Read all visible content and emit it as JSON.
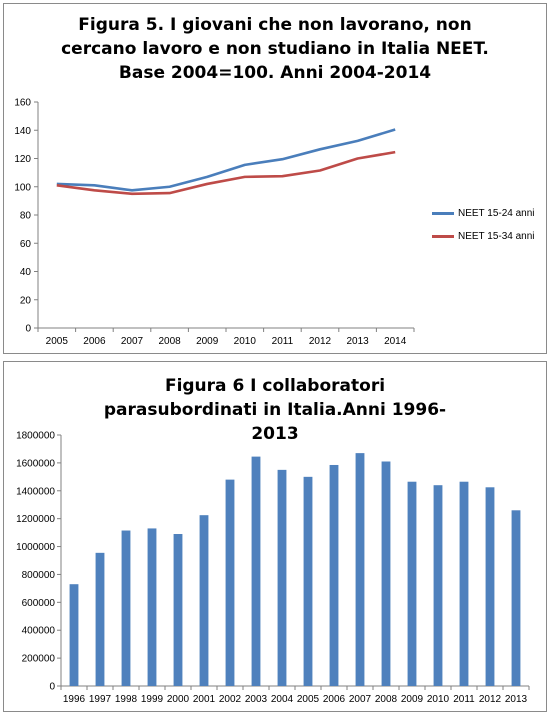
{
  "figures": [
    {
      "title": "Figura 5. I giovani che non lavorano, non cercano lavoro e non studiano in Italia NEET. Base 2004=100. Anni 2004-2014"
    },
    {
      "title": "Figura 6 I collaboratori parasubordinati in Italia.Anni 1996-2013"
    }
  ],
  "chart_data": [
    {
      "type": "line",
      "title": "Figura 5. I giovani che non lavorano, non cercano lavoro e non studiano in Italia NEET. Base 2004=100. Anni 2004-2014",
      "x": [
        "2005",
        "2006",
        "2007",
        "2008",
        "2009",
        "2010",
        "2011",
        "2012",
        "2013",
        "2014"
      ],
      "ylim": [
        0,
        160
      ],
      "yticks": [
        0,
        20,
        40,
        60,
        80,
        100,
        120,
        140,
        160
      ],
      "grid": false,
      "legend": "right",
      "series": [
        {
          "name": "NEET 15-24 anni",
          "color": "#4a7ebb",
          "values": [
            102,
            101,
            97.5,
            100,
            107,
            115.5,
            119.5,
            126.5,
            132.5,
            140.5
          ]
        },
        {
          "name": "NEET 15-34 anni",
          "color": "#be4b48",
          "values": [
            101,
            97.5,
            95,
            95.5,
            102,
            107,
            107.5,
            111.5,
            120,
            124.5
          ]
        }
      ]
    },
    {
      "type": "bar",
      "title": "Figura 6 I collaboratori parasubordinati in Italia.Anni 1996-2013",
      "categories": [
        "1996",
        "1997",
        "1998",
        "1999",
        "2000",
        "2001",
        "2002",
        "2003",
        "2004",
        "2005",
        "2006",
        "2007",
        "2008",
        "2009",
        "2010",
        "2011",
        "2012",
        "2013"
      ],
      "values": [
        730000,
        955000,
        1115000,
        1130000,
        1090000,
        1225000,
        1480000,
        1645000,
        1550000,
        1500000,
        1585000,
        1670000,
        1610000,
        1465000,
        1440000,
        1465000,
        1425000,
        1260000
      ],
      "ylim": [
        0,
        1800000
      ],
      "yticks": [
        0,
        200000,
        400000,
        600000,
        800000,
        1000000,
        1200000,
        1400000,
        1600000,
        1800000
      ],
      "grid": false,
      "color": "#4f81bd"
    }
  ]
}
